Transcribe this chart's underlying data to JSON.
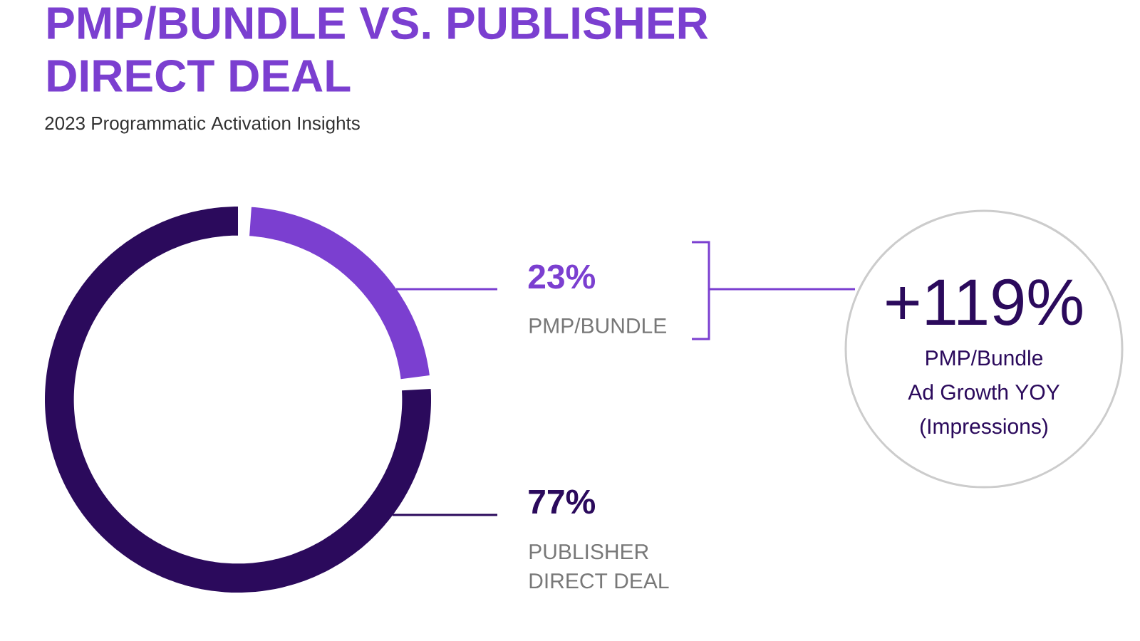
{
  "chart_data": {
    "type": "donut",
    "title": "PMP/BUNDLE VS. PUBLISHER DIRECT DEAL",
    "subtitle": "2023 Programmatic Activation Insights",
    "categories": [
      "PMP/BUNDLE",
      "PUBLISHER DIRECT DEAL"
    ],
    "values": [
      23,
      77
    ],
    "colors": [
      "#7b3fd0",
      "#2b0a5c"
    ],
    "value_labels": [
      "23%",
      "77%"
    ],
    "annotations": [
      "+119%",
      "PMP/Bundle",
      "Ad Growth YOY",
      "(Impressions)"
    ]
  }
}
